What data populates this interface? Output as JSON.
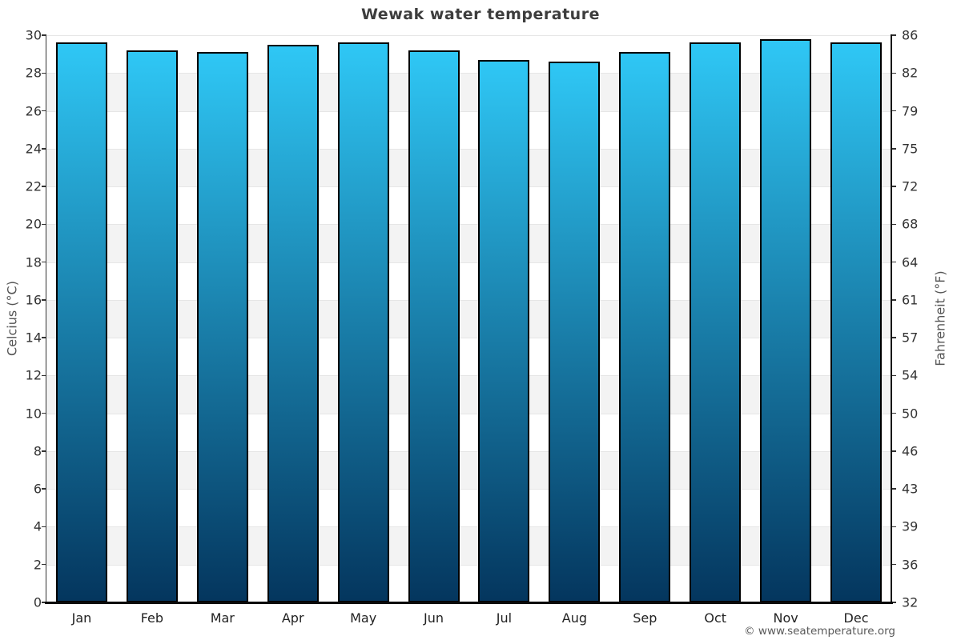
{
  "page": {
    "title": "Wewak water temperature",
    "attribution": "© www.seatemperature.org"
  },
  "chart_data": {
    "type": "bar",
    "title": "Wewak water temperature",
    "categories": [
      "Jan",
      "Feb",
      "Mar",
      "Apr",
      "May",
      "Jun",
      "Jul",
      "Aug",
      "Sep",
      "Oct",
      "Nov",
      "Dec"
    ],
    "values": [
      29.6,
      29.2,
      29.1,
      29.5,
      29.6,
      29.2,
      28.7,
      28.6,
      29.1,
      29.6,
      29.8,
      29.6
    ],
    "unit": "°C",
    "axes": {
      "left": {
        "label": "Celcius (°C)",
        "range": [
          0,
          30
        ],
        "ticks": [
          0,
          2,
          4,
          6,
          8,
          10,
          12,
          14,
          16,
          18,
          20,
          22,
          24,
          26,
          28,
          30
        ]
      },
      "right": {
        "label": "Fahrenheit (°F)",
        "tick_labels": [
          "32",
          "36",
          "39",
          "43",
          "46",
          "50",
          "54",
          "57",
          "61",
          "64",
          "68",
          "72",
          "75",
          "79",
          "82",
          "86"
        ]
      },
      "x": {
        "labels": [
          "Jan",
          "Feb",
          "Mar",
          "Apr",
          "May",
          "Jun",
          "Jul",
          "Aug",
          "Sep",
          "Oct",
          "Nov",
          "Dec"
        ]
      }
    },
    "grid": "horizontal alternating bands every 2°C",
    "legend": "none",
    "colors": {
      "bar_gradient_top": "#2FC7F5",
      "bar_gradient_bottom": "#04365E",
      "bar_border": "#000000",
      "band_gray": "#F3F3F3",
      "band_white": "#FFFFFF",
      "grid_line": "#E6E6E6",
      "axis_line": "#111111",
      "title_text": "#3D3D3D",
      "tick_text": "#333333",
      "axis_title_text": "#555555",
      "attribution_text": "#5A5A5A"
    }
  }
}
